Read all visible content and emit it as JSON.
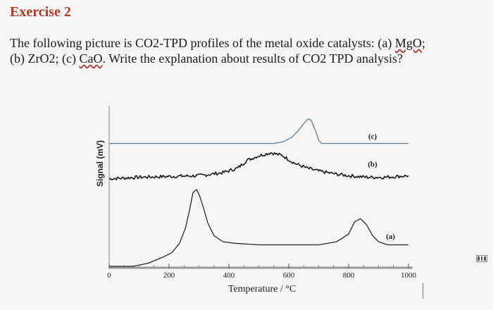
{
  "exercise": {
    "title": "Exercise 2"
  },
  "question": {
    "line1_a": "The following picture is CO2-TPD profiles of the metal oxide catalysts: (a) ",
    "line1_mgo": "MgO",
    "line1_b": ";",
    "line2_a": "(b) ZrO2; (c) ",
    "line2_cao": "CaO",
    "line2_b": ". Write the explanation about results of CO2 TPD analysis?"
  },
  "chart_data": {
    "type": "line",
    "xlabel": "Temperature / °C",
    "ylabel": "Signal (mV)",
    "xlim": [
      0,
      1000
    ],
    "ylim": [
      0,
      100
    ],
    "x_ticks": [
      0,
      200,
      400,
      600,
      800,
      1000
    ],
    "x_tick_labels": [
      "0",
      "200",
      "400",
      "600",
      "800",
      "1000"
    ],
    "grid": false,
    "series": [
      {
        "name": "(a)",
        "color": "#2a2a2a",
        "points": [
          [
            0,
            0
          ],
          [
            80,
            0
          ],
          [
            130,
            2
          ],
          [
            180,
            6
          ],
          [
            210,
            9
          ],
          [
            235,
            15
          ],
          [
            255,
            25
          ],
          [
            268,
            36
          ],
          [
            280,
            48
          ],
          [
            292,
            50
          ],
          [
            302,
            46
          ],
          [
            315,
            38
          ],
          [
            330,
            28
          ],
          [
            350,
            20
          ],
          [
            380,
            16
          ],
          [
            420,
            15
          ],
          [
            500,
            14
          ],
          [
            600,
            14
          ],
          [
            700,
            14
          ],
          [
            760,
            16
          ],
          [
            800,
            21
          ],
          [
            820,
            29
          ],
          [
            840,
            31
          ],
          [
            860,
            27
          ],
          [
            880,
            20
          ],
          [
            900,
            16
          ],
          [
            930,
            14
          ],
          [
            1000,
            14
          ]
        ]
      },
      {
        "name": "(b)",
        "color": "#1a1a1a",
        "noisy": true,
        "points": [
          [
            0,
            57
          ],
          [
            100,
            58
          ],
          [
            200,
            58.5
          ],
          [
            300,
            59
          ],
          [
            380,
            61
          ],
          [
            430,
            64
          ],
          [
            460,
            69
          ],
          [
            500,
            72
          ],
          [
            540,
            74
          ],
          [
            580,
            72
          ],
          [
            620,
            67
          ],
          [
            660,
            64
          ],
          [
            700,
            62
          ],
          [
            760,
            60
          ],
          [
            800,
            59
          ],
          [
            860,
            58
          ],
          [
            920,
            58
          ],
          [
            1000,
            59
          ]
        ]
      },
      {
        "name": "(c)",
        "color": "#5c7f96",
        "points": [
          [
            0,
            80
          ],
          [
            200,
            80
          ],
          [
            400,
            80
          ],
          [
            550,
            80
          ],
          [
            580,
            81
          ],
          [
            610,
            84
          ],
          [
            630,
            88
          ],
          [
            650,
            93
          ],
          [
            665,
            96
          ],
          [
            675,
            95
          ],
          [
            690,
            88
          ],
          [
            700,
            82
          ],
          [
            710,
            80
          ],
          [
            760,
            80
          ],
          [
            850,
            80
          ],
          [
            1000,
            80
          ]
        ]
      }
    ],
    "annotations": [
      {
        "text": "(c)",
        "x": 880,
        "y": 83
      },
      {
        "text": "(b)",
        "x": 880,
        "y": 65
      },
      {
        "text": "(a)",
        "x": 940,
        "y": 18
      }
    ]
  }
}
